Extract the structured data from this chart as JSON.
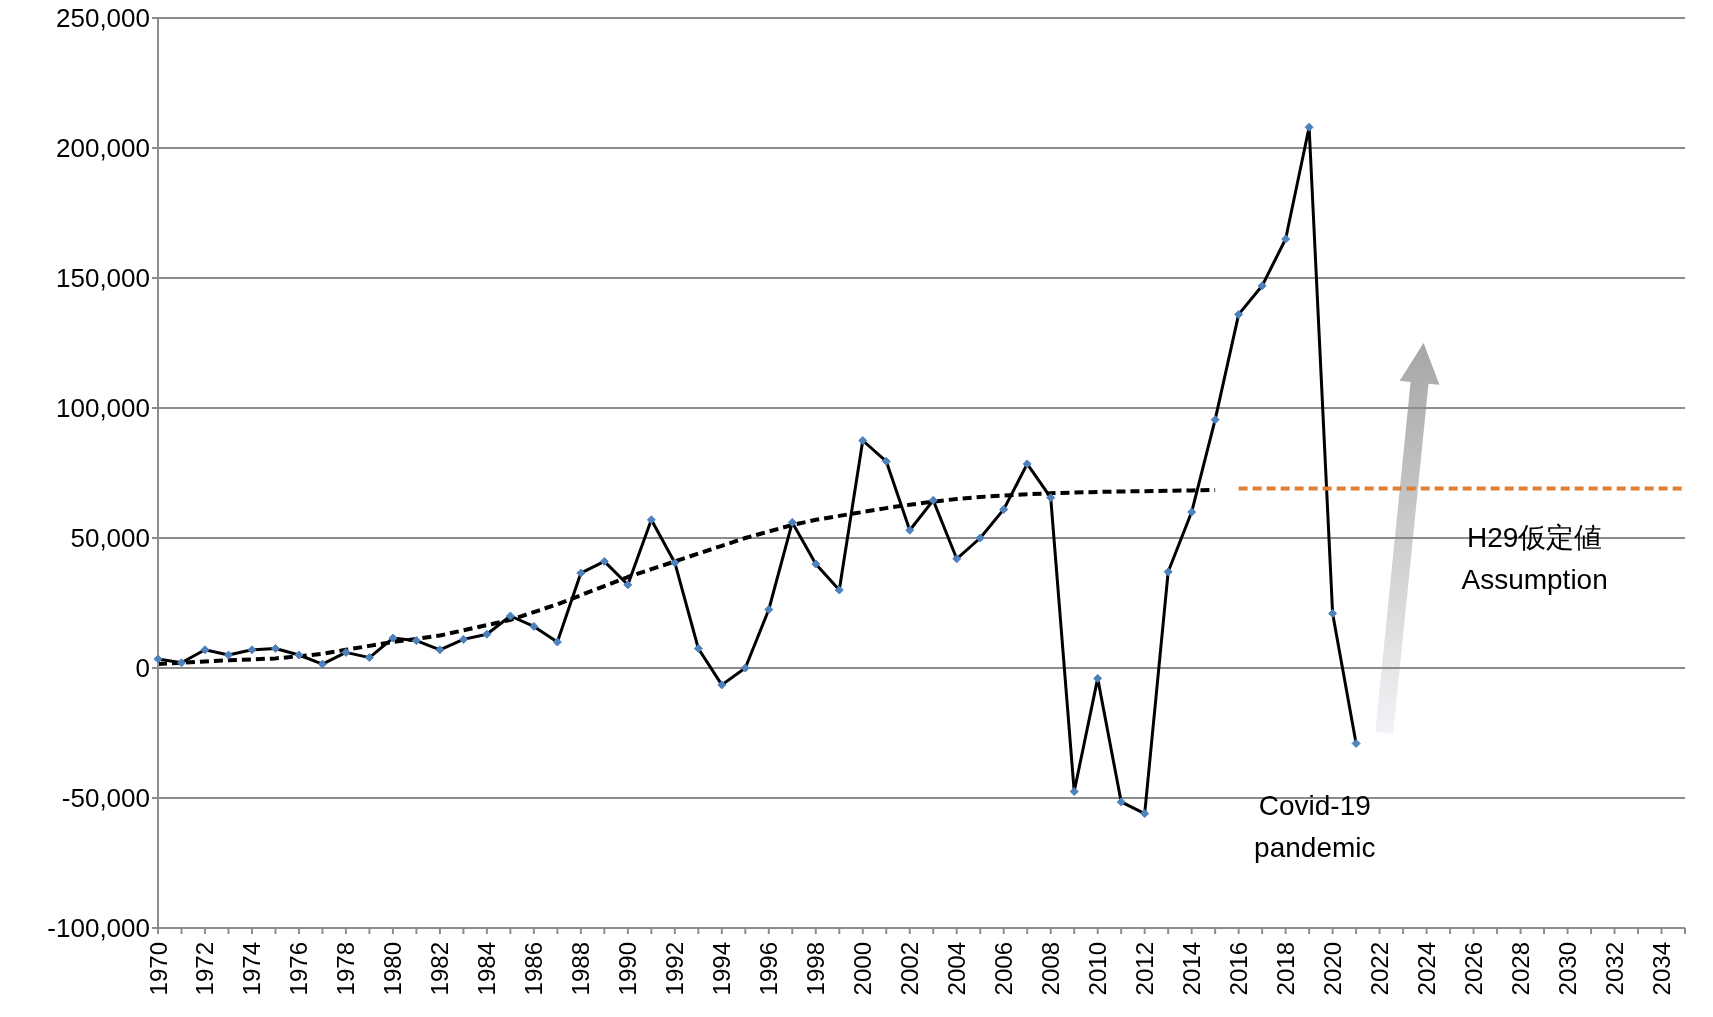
{
  "chart_data": {
    "type": "line",
    "categories": [
      "1970",
      null,
      "1972",
      null,
      "1974",
      null,
      "1976",
      null,
      "1978",
      null,
      "1980",
      null,
      "1982",
      null,
      "1984",
      null,
      "1986",
      null,
      "1988",
      null,
      "1990",
      null,
      "1992",
      null,
      "1994",
      null,
      "1996",
      null,
      "1998",
      null,
      "2000",
      null,
      "2002",
      null,
      "2004",
      null,
      "2006",
      null,
      "2008",
      null,
      "2010",
      null,
      "2012",
      null,
      "2014",
      null,
      "2016",
      null,
      "2018",
      null,
      "2020",
      null,
      "2022",
      null,
      "2024",
      null,
      "2026",
      null,
      "2028",
      null,
      "2030",
      null,
      "2032",
      null,
      "2034",
      null
    ],
    "series": [
      {
        "color": "#000000",
        "marker": "diamond",
        "line_style": "solid",
        "values": [
          3500,
          2000,
          7000,
          5000,
          7000,
          7500,
          5000,
          1500,
          6000,
          4000,
          11500,
          10500,
          7000,
          11000,
          13000,
          20000,
          16000,
          10000,
          36500,
          41000,
          32000,
          57000,
          40500,
          7500,
          -6500,
          0,
          22500,
          56000,
          40000,
          30000,
          87500,
          79500,
          53000,
          64500,
          42000,
          50000,
          61000,
          78500,
          65500,
          -47500,
          -4000,
          -51500,
          -56000,
          37000,
          60000,
          95500,
          136000,
          147000,
          165000,
          208000,
          21000,
          -29000,
          null,
          null,
          null,
          null,
          null,
          null,
          null,
          null,
          null,
          null,
          null,
          null,
          null,
          null
        ]
      },
      {
        "color": "#000000",
        "marker": "none",
        "line_style": "dashed",
        "values": [
          1500,
          2000,
          2500,
          3000,
          3300,
          3700,
          4500,
          5500,
          7000,
          8500,
          10000,
          11200,
          12500,
          14500,
          16500,
          18500,
          21500,
          24500,
          28000,
          31500,
          35000,
          38000,
          41000,
          44000,
          47000,
          50000,
          52500,
          55000,
          57000,
          58500,
          60000,
          61500,
          62800,
          64000,
          65000,
          65800,
          66300,
          66800,
          67200,
          67500,
          67700,
          67900,
          68000,
          68200,
          68300,
          68500,
          null,
          null,
          null,
          null,
          null,
          null,
          null,
          null,
          null,
          null,
          null,
          null,
          null,
          null,
          null,
          null,
          null,
          null,
          null,
          null
        ]
      },
      {
        "color": "#e07f33",
        "marker": "none",
        "line_style": "dashed",
        "values": [
          null,
          null,
          null,
          null,
          null,
          null,
          null,
          null,
          null,
          null,
          null,
          null,
          null,
          null,
          null,
          null,
          null,
          null,
          null,
          null,
          null,
          null,
          null,
          null,
          null,
          null,
          null,
          null,
          null,
          null,
          null,
          null,
          null,
          null,
          null,
          null,
          null,
          null,
          null,
          null,
          null,
          null,
          null,
          null,
          null,
          null,
          69000,
          69000,
          69000,
          69000,
          69000,
          69000,
          69000,
          69000,
          69000,
          69000,
          69000,
          69000,
          69000,
          69000,
          69000,
          69000,
          69000,
          69000,
          69000,
          69000
        ]
      }
    ],
    "ylim": [
      -100000,
      250000
    ],
    "yticks": [
      {
        "value": -100000,
        "label": "-100,000"
      },
      {
        "value": -50000,
        "label": "-50,000"
      },
      0,
      {
        "value": 50000,
        "label": "50,000"
      },
      {
        "value": 100000,
        "label": "100,000"
      },
      {
        "value": 150000,
        "label": "150,000"
      },
      {
        "value": 200000,
        "label": "200,000"
      },
      {
        "value": 250000,
        "label": "250,000"
      }
    ],
    "grid": "y",
    "annotations": [
      "H29仮定値\nAssumption",
      "Covid-19\npandemic"
    ]
  }
}
